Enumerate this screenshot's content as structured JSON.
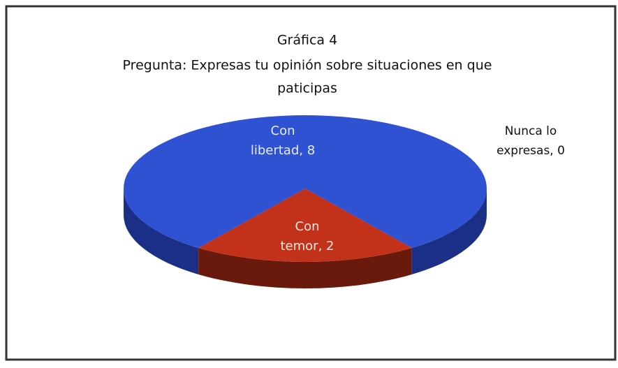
{
  "chart_data": {
    "type": "pie",
    "title": "Gráfica 4",
    "subtitle": [
      "Pregunta: Expresas tu opinión sobre situaciones en que",
      "paticipas"
    ],
    "values": [
      8,
      2,
      0
    ],
    "value_labels": [
      [
        "Con",
        "libertad, 8"
      ],
      [
        "Con",
        "temor, 2"
      ],
      [
        "Nunca lo",
        "expresas, 0"
      ]
    ],
    "colors": [
      "#2f52d2",
      "#c2321b",
      "#7a9a3a"
    ],
    "side_colors": [
      "#1b2f86",
      "#6a1a0c",
      "#44571f"
    ]
  }
}
